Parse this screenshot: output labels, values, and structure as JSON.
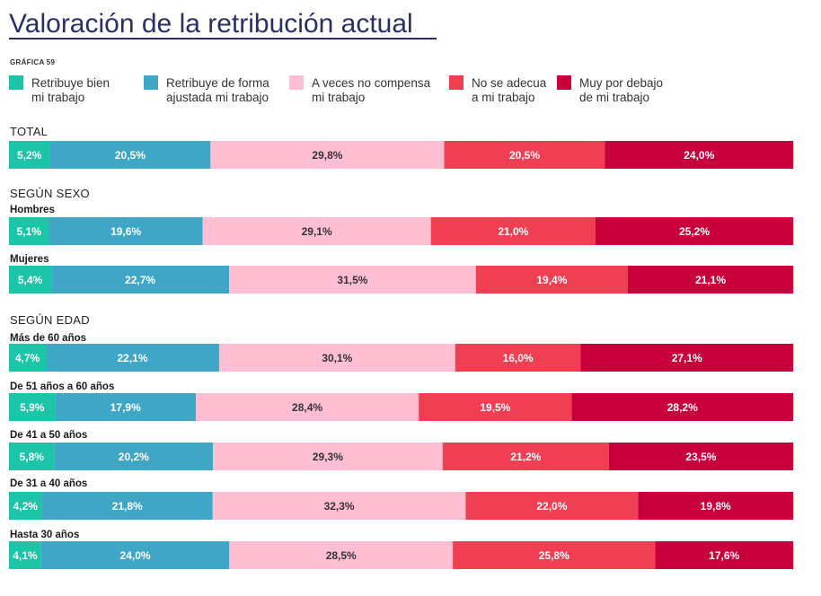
{
  "title": "Valoración de la retribución actual",
  "figure_label": "GRÁFICA 59",
  "chart_data": {
    "type": "bar",
    "orientation": "horizontal",
    "stacked": true,
    "percent": true,
    "legend_position": "top",
    "series": [
      {
        "name": "Retribuye bien mi trabajo",
        "legend_lines": [
          "Retribuye bien",
          "mi trabajo"
        ],
        "color": "#1cc4a8",
        "label_color": "#ffffff"
      },
      {
        "name": "Retribuye de forma ajustada mi trabajo",
        "legend_lines": [
          "Retribuye de forma",
          "ajustada mi trabajo"
        ],
        "color": "#3fa6c6",
        "label_color": "#ffffff"
      },
      {
        "name": "A veces no compensa mi trabajo",
        "legend_lines": [
          "A veces no compensa",
          "mi trabajo"
        ],
        "color": "#ffbed2",
        "label_color": "#333333"
      },
      {
        "name": "No se adecua a mi trabajo",
        "legend_lines": [
          "No se adecua",
          "a mi trabajo"
        ],
        "color": "#f03e52",
        "label_color": "#ffffff"
      },
      {
        "name": "Muy por debajo de mi trabajo",
        "legend_lines": [
          "Muy por debajo",
          "de mi trabajo"
        ],
        "color": "#c8003c",
        "label_color": "#ffffff"
      }
    ],
    "groups": [
      {
        "heading": "TOTAL",
        "rows": [
          {
            "label": "",
            "values": [
              5.2,
              20.5,
              29.8,
              20.5,
              24.0
            ],
            "labels": [
              "5,2%",
              "20,5%",
              "29,8%",
              "20,5%",
              "24,0%"
            ]
          }
        ]
      },
      {
        "heading": "SEGÚN SEXO",
        "rows": [
          {
            "label": "Hombres",
            "values": [
              5.1,
              19.6,
              29.1,
              21.0,
              25.2
            ],
            "labels": [
              "5,1%",
              "19,6%",
              "29,1%",
              "21,0%",
              "25,2%"
            ]
          },
          {
            "label": "Mujeres",
            "values": [
              5.4,
              22.7,
              31.5,
              19.4,
              21.1
            ],
            "labels": [
              "5,4%",
              "22,7%",
              "31,5%",
              "19,4%",
              "21,1%"
            ]
          }
        ]
      },
      {
        "heading": "SEGÚN EDAD",
        "rows": [
          {
            "label": "Más de 60 años",
            "values": [
              4.7,
              22.1,
              30.1,
              16.0,
              27.1
            ],
            "labels": [
              "4,7%",
              "22,1%",
              "30,1%",
              "16,0%",
              "27,1%"
            ]
          },
          {
            "label": "De 51 años a 60 años",
            "values": [
              5.9,
              17.9,
              28.4,
              19.5,
              28.2
            ],
            "labels": [
              "5,9%",
              "17,9%",
              "28,4%",
              "19,5%",
              "28,2%"
            ]
          },
          {
            "label": "De 41 a 50 años",
            "values": [
              5.8,
              20.2,
              29.3,
              21.2,
              23.5
            ],
            "labels": [
              "5,8%",
              "20,2%",
              "29,3%",
              "21,2%",
              "23,5%"
            ]
          },
          {
            "label": "De 31 a 40 años",
            "values": [
              4.2,
              21.8,
              32.3,
              22.0,
              19.8
            ],
            "labels": [
              "4,2%",
              "21,8%",
              "32,3%",
              "22,0%",
              "19,8%"
            ]
          },
          {
            "label": "Hasta 30 años",
            "values": [
              4.1,
              24.0,
              28.5,
              25.8,
              17.6
            ],
            "labels": [
              "4,1%",
              "24,0%",
              "28,5%",
              "25,8%",
              "17,6%"
            ]
          }
        ]
      }
    ]
  }
}
